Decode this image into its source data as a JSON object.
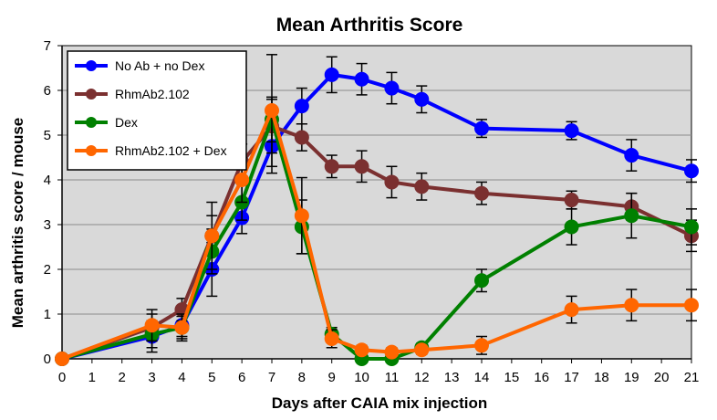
{
  "chart_data": {
    "type": "line",
    "title": "Mean Arthritis Score",
    "xlabel": "Days after CAIA mix injection",
    "ylabel": "Mean arthritis score / mouse",
    "xlim": [
      0,
      21
    ],
    "ylim": [
      0,
      7
    ],
    "xticks": [
      0,
      1,
      2,
      3,
      4,
      5,
      6,
      7,
      8,
      9,
      10,
      11,
      12,
      13,
      14,
      15,
      16,
      17,
      18,
      19,
      20,
      21
    ],
    "yticks": [
      0,
      1,
      2,
      3,
      4,
      5,
      6,
      7
    ],
    "grid": "horizontal",
    "legend_position": "top-left",
    "colors": {
      "plot_background": "#d9d9d9",
      "grid": "#8c8c8c"
    },
    "series": [
      {
        "name": "No Ab + no Dex",
        "color": "#0000ff",
        "points": [
          {
            "x": 0,
            "y": 0,
            "err": 0
          },
          {
            "x": 3,
            "y": 0.5,
            "err": 0.35
          },
          {
            "x": 4,
            "y": 0.75,
            "err": 0.25
          },
          {
            "x": 5,
            "y": 2.0,
            "err": 0.6
          },
          {
            "x": 6,
            "y": 3.15,
            "err": 0.35
          },
          {
            "x": 7,
            "y": 4.75,
            "err": 0.6
          },
          {
            "x": 8,
            "y": 5.65,
            "err": 0.4
          },
          {
            "x": 9,
            "y": 6.35,
            "err": 0.4
          },
          {
            "x": 10,
            "y": 6.25,
            "err": 0.35
          },
          {
            "x": 11,
            "y": 6.05,
            "err": 0.35
          },
          {
            "x": 12,
            "y": 5.8,
            "err": 0.3
          },
          {
            "x": 14,
            "y": 5.15,
            "err": 0.2
          },
          {
            "x": 17,
            "y": 5.1,
            "err": 0.2
          },
          {
            "x": 19,
            "y": 4.55,
            "err": 0.35
          },
          {
            "x": 21,
            "y": 4.2,
            "err": 0.25
          }
        ]
      },
      {
        "name": "RhmAb2.102",
        "color": "#7b3030",
        "points": [
          {
            "x": 0,
            "y": 0,
            "err": 0
          },
          {
            "x": 3,
            "y": 0.7,
            "err": 0.3
          },
          {
            "x": 4,
            "y": 1.1,
            "err": 0.25
          },
          {
            "x": 5,
            "y": 2.75,
            "err": 0.45
          },
          {
            "x": 6,
            "y": 4.4,
            "err": 0.4
          },
          {
            "x": 7,
            "y": 5.2,
            "err": 0.6
          },
          {
            "x": 8,
            "y": 4.95,
            "err": 0.3
          },
          {
            "x": 9,
            "y": 4.3,
            "err": 0.25
          },
          {
            "x": 10,
            "y": 4.3,
            "err": 0.35
          },
          {
            "x": 11,
            "y": 3.95,
            "err": 0.35
          },
          {
            "x": 12,
            "y": 3.85,
            "err": 0.3
          },
          {
            "x": 14,
            "y": 3.7,
            "err": 0.25
          },
          {
            "x": 17,
            "y": 3.55,
            "err": 0.2
          },
          {
            "x": 19,
            "y": 3.4,
            "err": 0.3
          },
          {
            "x": 21,
            "y": 2.75,
            "err": 0.35
          }
        ]
      },
      {
        "name": "Dex",
        "color": "#008000",
        "points": [
          {
            "x": 0,
            "y": 0,
            "err": 0
          },
          {
            "x": 3,
            "y": 0.55,
            "err": 0.3
          },
          {
            "x": 4,
            "y": 0.7,
            "err": 0.25
          },
          {
            "x": 5,
            "y": 2.4,
            "err": 0.5
          },
          {
            "x": 6,
            "y": 3.5,
            "err": 0.4
          },
          {
            "x": 7,
            "y": 5.35,
            "err": 0.5
          },
          {
            "x": 8,
            "y": 2.95,
            "err": 0.6
          },
          {
            "x": 9,
            "y": 0.55,
            "err": 0.15
          },
          {
            "x": 10,
            "y": 0.0,
            "err": 0.05
          },
          {
            "x": 11,
            "y": 0.0,
            "err": 0.05
          },
          {
            "x": 12,
            "y": 0.25,
            "err": 0.1
          },
          {
            "x": 14,
            "y": 1.75,
            "err": 0.25
          },
          {
            "x": 17,
            "y": 2.95,
            "err": 0.4
          },
          {
            "x": 19,
            "y": 3.2,
            "err": 0.5
          },
          {
            "x": 21,
            "y": 2.95,
            "err": 0.4
          }
        ]
      },
      {
        "name": "RhmAb2.102 + Dex",
        "color": "#ff6600",
        "points": [
          {
            "x": 0,
            "y": 0,
            "err": 0
          },
          {
            "x": 3,
            "y": 0.75,
            "err": 0.35
          },
          {
            "x": 4,
            "y": 0.7,
            "err": 0.3
          },
          {
            "x": 5,
            "y": 2.75,
            "err": 0.75
          },
          {
            "x": 6,
            "y": 4.0,
            "err": 0.5
          },
          {
            "x": 7,
            "y": 5.55,
            "err": 1.25
          },
          {
            "x": 8,
            "y": 3.2,
            "err": 0.85
          },
          {
            "x": 9,
            "y": 0.45,
            "err": 0.2
          },
          {
            "x": 10,
            "y": 0.2,
            "err": 0.1
          },
          {
            "x": 11,
            "y": 0.15,
            "err": 0.1
          },
          {
            "x": 12,
            "y": 0.2,
            "err": 0.1
          },
          {
            "x": 14,
            "y": 0.3,
            "err": 0.2
          },
          {
            "x": 17,
            "y": 1.1,
            "err": 0.3
          },
          {
            "x": 19,
            "y": 1.2,
            "err": 0.35
          },
          {
            "x": 21,
            "y": 1.2,
            "err": 0.35
          }
        ]
      }
    ]
  }
}
